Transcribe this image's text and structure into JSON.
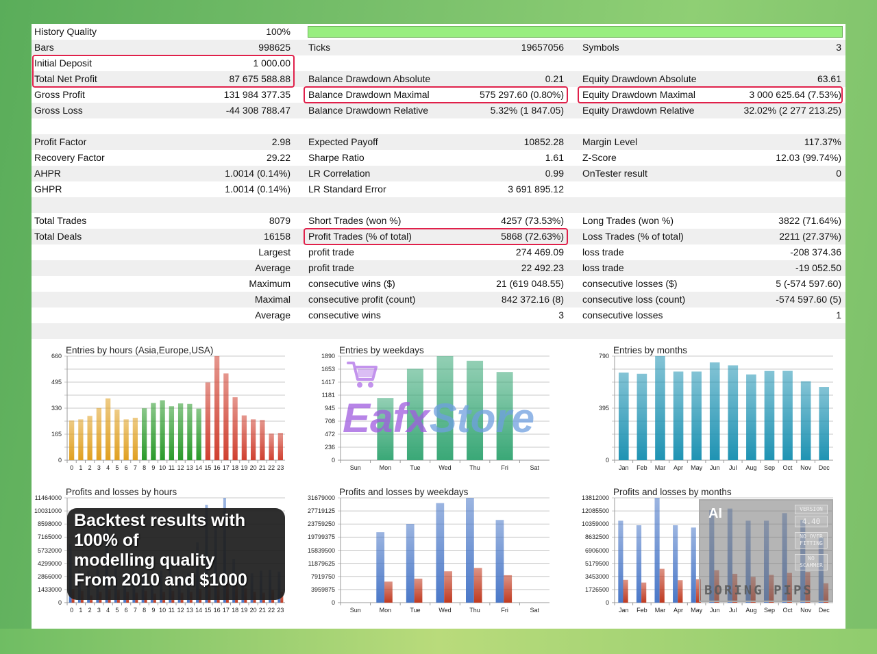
{
  "report": {
    "history_quality_percent": 100,
    "rows": [
      [
        {
          "l": "History Quality",
          "v": "100%"
        },
        {
          "l": "",
          "v": ""
        },
        {
          "l": "",
          "v": ""
        }
      ],
      [
        {
          "l": "Bars",
          "v": "998625"
        },
        {
          "l": "Ticks",
          "v": "19657056"
        },
        {
          "l": "Symbols",
          "v": "3"
        }
      ],
      [
        {
          "l": "Initial Deposit",
          "v": "1 000.00"
        },
        {
          "l": "",
          "v": ""
        },
        {
          "l": "",
          "v": ""
        }
      ],
      [
        {
          "l": "Total Net Profit",
          "v": "87 675 588.88"
        },
        {
          "l": "Balance Drawdown Absolute",
          "v": "0.21"
        },
        {
          "l": "Equity Drawdown Absolute",
          "v": "63.61"
        }
      ],
      [
        {
          "l": "Gross Profit",
          "v": "131 984 377.35"
        },
        {
          "l": "Balance Drawdown Maximal",
          "v": "575 297.60 (0.80%)"
        },
        {
          "l": "Equity Drawdown Maximal",
          "v": "3 000 625.64 (7.53%)"
        }
      ],
      [
        {
          "l": "Gross Loss",
          "v": "-44 308 788.47"
        },
        {
          "l": "Balance Drawdown Relative",
          "v": "5.32% (1 847.05)"
        },
        {
          "l": "Equity Drawdown Relative",
          "v": "32.02% (2 277 213.25)"
        }
      ],
      [
        {
          "l": "",
          "v": ""
        },
        {
          "l": "",
          "v": ""
        },
        {
          "l": "",
          "v": ""
        }
      ],
      [
        {
          "l": "Profit Factor",
          "v": "2.98"
        },
        {
          "l": "Expected Payoff",
          "v": "10852.28"
        },
        {
          "l": "Margin Level",
          "v": "117.37%"
        }
      ],
      [
        {
          "l": "Recovery Factor",
          "v": "29.22"
        },
        {
          "l": "Sharpe Ratio",
          "v": "1.61"
        },
        {
          "l": "Z-Score",
          "v": "12.03 (99.74%)"
        }
      ],
      [
        {
          "l": "AHPR",
          "v": "1.0014 (0.14%)"
        },
        {
          "l": "LR Correlation",
          "v": "0.99"
        },
        {
          "l": "OnTester result",
          "v": "0"
        }
      ],
      [
        {
          "l": "GHPR",
          "v": "1.0014 (0.14%)"
        },
        {
          "l": "LR Standard Error",
          "v": "3 691 895.12"
        },
        {
          "l": "",
          "v": ""
        }
      ],
      [
        {
          "l": "",
          "v": ""
        },
        {
          "l": "",
          "v": ""
        },
        {
          "l": "",
          "v": ""
        }
      ],
      [
        {
          "l": "Total Trades",
          "v": "8079"
        },
        {
          "l": "Short Trades (won %)",
          "v": "4257 (73.53%)"
        },
        {
          "l": "Long Trades (won %)",
          "v": "3822 (71.64%)"
        }
      ],
      [
        {
          "l": "Total Deals",
          "v": "16158"
        },
        {
          "l": "Profit Trades (% of total)",
          "v": "5868 (72.63%)"
        },
        {
          "l": "Loss Trades (% of total)",
          "v": "2211 (27.37%)"
        }
      ],
      [
        {
          "l": "",
          "v": "Largest"
        },
        {
          "l": "profit trade",
          "v": "274 469.09"
        },
        {
          "l": "loss trade",
          "v": "-208 374.36"
        }
      ],
      [
        {
          "l": "",
          "v": "Average"
        },
        {
          "l": "profit trade",
          "v": "22 492.23"
        },
        {
          "l": "loss trade",
          "v": "-19 052.50"
        }
      ],
      [
        {
          "l": "",
          "v": "Maximum"
        },
        {
          "l": "consecutive wins ($)",
          "v": "21 (619 048.55)"
        },
        {
          "l": "consecutive losses ($)",
          "v": "5 (-574 597.60)"
        }
      ],
      [
        {
          "l": "",
          "v": "Maximal"
        },
        {
          "l": "consecutive profit (count)",
          "v": "842 372.16 (8)"
        },
        {
          "l": "consecutive loss (count)",
          "v": "-574 597.60 (5)"
        }
      ],
      [
        {
          "l": "",
          "v": "Average"
        },
        {
          "l": "consecutive wins",
          "v": "3"
        },
        {
          "l": "consecutive losses",
          "v": "1"
        }
      ],
      [
        {
          "l": "",
          "v": ""
        },
        {
          "l": "",
          "v": ""
        },
        {
          "l": "",
          "v": ""
        }
      ]
    ],
    "highlight_color": "#e0204a"
  },
  "chart_data": [
    {
      "type": "bar",
      "title": "Entries by hours (Asia,Europe,USA)",
      "ylim": [
        0,
        660
      ],
      "yticks": [
        "0",
        "165",
        "330",
        "495",
        "660"
      ],
      "categories": [
        "0",
        "1",
        "2",
        "3",
        "4",
        "5",
        "6",
        "7",
        "8",
        "9",
        "10",
        "11",
        "12",
        "13",
        "14",
        "15",
        "16",
        "17",
        "18",
        "19",
        "20",
        "21",
        "22",
        "23"
      ],
      "series": [
        {
          "values": [
            252,
            259,
            281,
            331,
            392,
            321,
            259,
            269,
            329,
            363,
            380,
            342,
            360,
            357,
            327,
            493,
            660,
            550,
            399,
            284,
            259,
            255,
            169,
            173
          ]
        }
      ],
      "bar_colors": {
        "Asia": "#e0a020",
        "Europe": "#2a9a2a",
        "USA": "#d04030"
      },
      "grid": true
    },
    {
      "type": "bar",
      "title": "Entries by weekdays",
      "ylim": [
        0,
        1890
      ],
      "yticks": [
        "0",
        "236",
        "472",
        "708",
        "945",
        "1181",
        "1417",
        "1653",
        "1890"
      ],
      "categories": [
        "Sun",
        "Mon",
        "Tue",
        "Wed",
        "Thu",
        "Fri",
        "Sat"
      ],
      "series": [
        {
          "values": [
            0,
            1130,
            1660,
            1890,
            1805,
            1602,
            0
          ],
          "color": "#3aa877"
        }
      ],
      "grid": true
    },
    {
      "type": "bar",
      "title": "Entries by months",
      "ylim": [
        0,
        790
      ],
      "yticks": [
        "0",
        "395",
        "790"
      ],
      "categories": [
        "Jan",
        "Feb",
        "Mar",
        "Apr",
        "May",
        "Jun",
        "Jul",
        "Aug",
        "Sep",
        "Oct",
        "Nov",
        "Dec"
      ],
      "series": [
        {
          "values": [
            665,
            656,
            790,
            673,
            673,
            742,
            720,
            651,
            677,
            678,
            599,
            556
          ],
          "color": "#1f93b3"
        }
      ],
      "grid": true
    },
    {
      "type": "bar",
      "title": "Profits and losses by hours",
      "ylim": [
        0,
        11464000
      ],
      "yticks": [
        "0",
        "1433000",
        "2866000",
        "4299000",
        "5732000",
        "7165000",
        "8598000",
        "10031000",
        "11464000"
      ],
      "categories": [
        "0",
        "1",
        "2",
        "3",
        "4",
        "5",
        "6",
        "7",
        "8",
        "9",
        "10",
        "11",
        "12",
        "13",
        "14",
        "15",
        "16",
        "17",
        "18",
        "19",
        "20",
        "21",
        "22",
        "23"
      ],
      "series": [
        {
          "values": [
            6400000,
            3500000,
            3500000,
            3800000,
            8300000,
            4000000,
            3200000,
            3400000,
            3300000,
            3000000,
            3500000,
            4500000,
            3000000,
            3200000,
            6600000,
            10700000,
            8600000,
            11464000,
            4800000,
            3500000,
            3200000,
            3500000,
            3600000,
            3400000
          ],
          "color": "#4a78c8"
        },
        {
          "values": [
            1500000,
            1300000,
            800000,
            1200000,
            1500000,
            1400000,
            1200000,
            1100000,
            1300000,
            1000000,
            1200000,
            1300000,
            1100000,
            1200000,
            1500000,
            2000000,
            1800000,
            2500000,
            1800000,
            1600000,
            1200000,
            1100000,
            1400000,
            1200000
          ],
          "color": "#c03a20"
        }
      ],
      "grid": true
    },
    {
      "type": "bar",
      "title": "Profits and losses by weekdays",
      "ylim": [
        0,
        31679000
      ],
      "yticks": [
        "0",
        "3959875",
        "7919750",
        "11879625",
        "15839500",
        "19799375",
        "23759250",
        "27719125",
        "31679000"
      ],
      "categories": [
        "Sun",
        "Mon",
        "Tue",
        "Wed",
        "Thu",
        "Fri",
        "Sat"
      ],
      "series": [
        {
          "values": [
            0,
            21300000,
            23800000,
            30100000,
            31679000,
            25000000,
            0
          ],
          "color": "#4a78c8"
        },
        {
          "values": [
            0,
            6360000,
            7260000,
            9480000,
            10500000,
            8300000,
            0
          ],
          "color": "#c03a20"
        }
      ],
      "grid": true
    },
    {
      "type": "bar",
      "title": "Profits and losses by months",
      "ylim": [
        0,
        13812000
      ],
      "yticks": [
        "0",
        "1726500",
        "3453000",
        "5179500",
        "6906000",
        "8632500",
        "10359000",
        "12085500",
        "13812000"
      ],
      "categories": [
        "Jan",
        "Feb",
        "Mar",
        "Apr",
        "May",
        "Jun",
        "Jul",
        "Aug",
        "Sep",
        "Oct",
        "Nov",
        "Dec"
      ],
      "series": [
        {
          "values": [
            10800000,
            10200000,
            13812000,
            10200000,
            9900000,
            12200000,
            12400000,
            10800000,
            10800000,
            11800000,
            10900000,
            8600000
          ],
          "color": "#4a78c8"
        },
        {
          "values": [
            3000000,
            2650000,
            4460000,
            2960000,
            3080000,
            4280000,
            3800000,
            3400000,
            3660000,
            3920000,
            4040000,
            2560000
          ],
          "color": "#c03a20"
        }
      ],
      "grid": true
    }
  ],
  "overlay": {
    "lines": [
      "Backtest results with 100% of",
      "modelling quality",
      "From 2010 and $1000"
    ]
  },
  "watermark": {
    "part1": "Eafx",
    "part2": "Store",
    "icon": "shopping-cart-icon"
  },
  "badge": {
    "ai": "AI",
    "version_label": "VERSION",
    "version": "4.40",
    "tag1": "NO OVER FITTING",
    "tag2": "NO SCAMMER",
    "brand": "BORING PIPS"
  }
}
